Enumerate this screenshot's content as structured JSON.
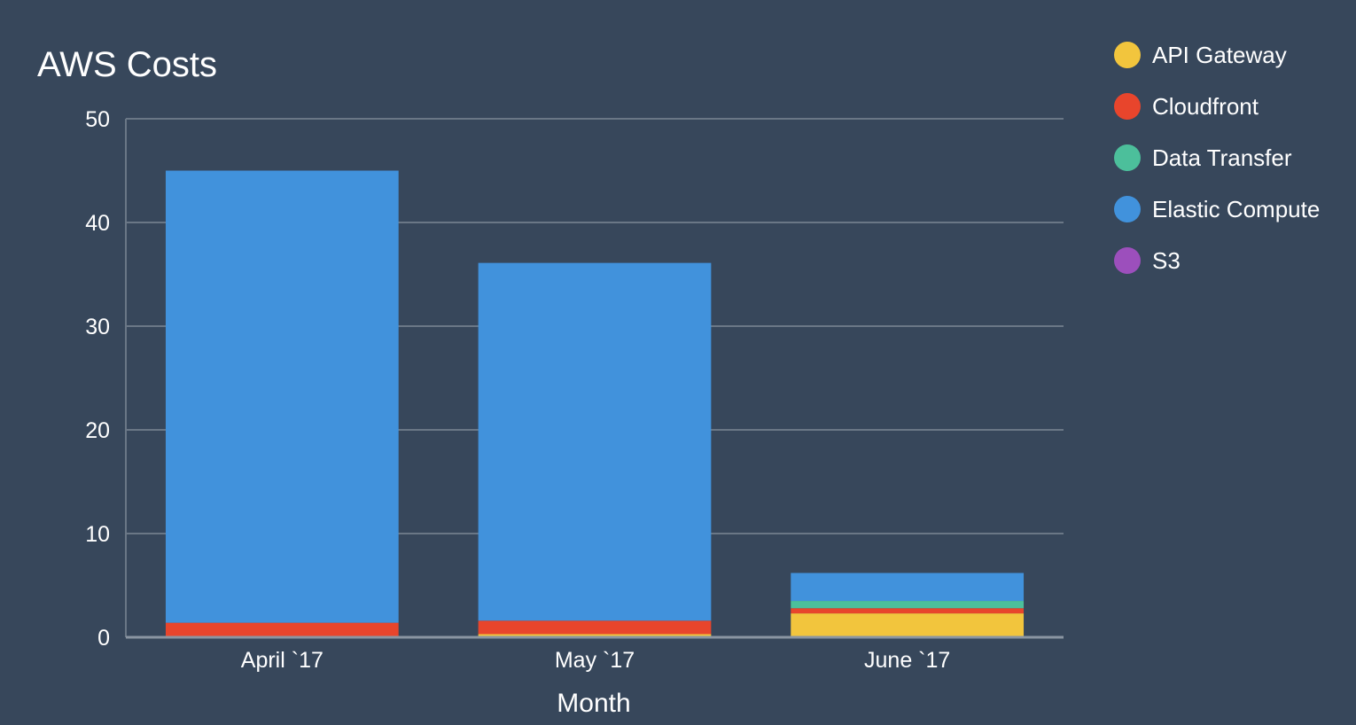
{
  "chart_data": {
    "type": "bar",
    "stacked": true,
    "title": "AWS Costs",
    "xlabel": "Month",
    "ylabel": "",
    "ylim": [
      0,
      50
    ],
    "yticks": [
      0,
      10,
      20,
      30,
      40,
      50
    ],
    "grid": true,
    "legend_position": "top-right",
    "categories": [
      "April `17",
      "May `17",
      "June `17"
    ],
    "series": [
      {
        "name": "API Gateway",
        "color": "#f2c53d",
        "values": [
          0,
          0.3,
          2.3
        ]
      },
      {
        "name": "Cloudfront",
        "color": "#e8452c",
        "values": [
          1.4,
          1.3,
          0.5
        ]
      },
      {
        "name": "Data Transfer",
        "color": "#4cbf9b",
        "values": [
          0,
          0,
          0.7
        ]
      },
      {
        "name": "Elastic Compute",
        "color": "#4192dc",
        "values": [
          43.6,
          34.5,
          2.7
        ]
      },
      {
        "name": "S3",
        "color": "#9c4fbc",
        "values": [
          0,
          0,
          0
        ]
      }
    ]
  }
}
